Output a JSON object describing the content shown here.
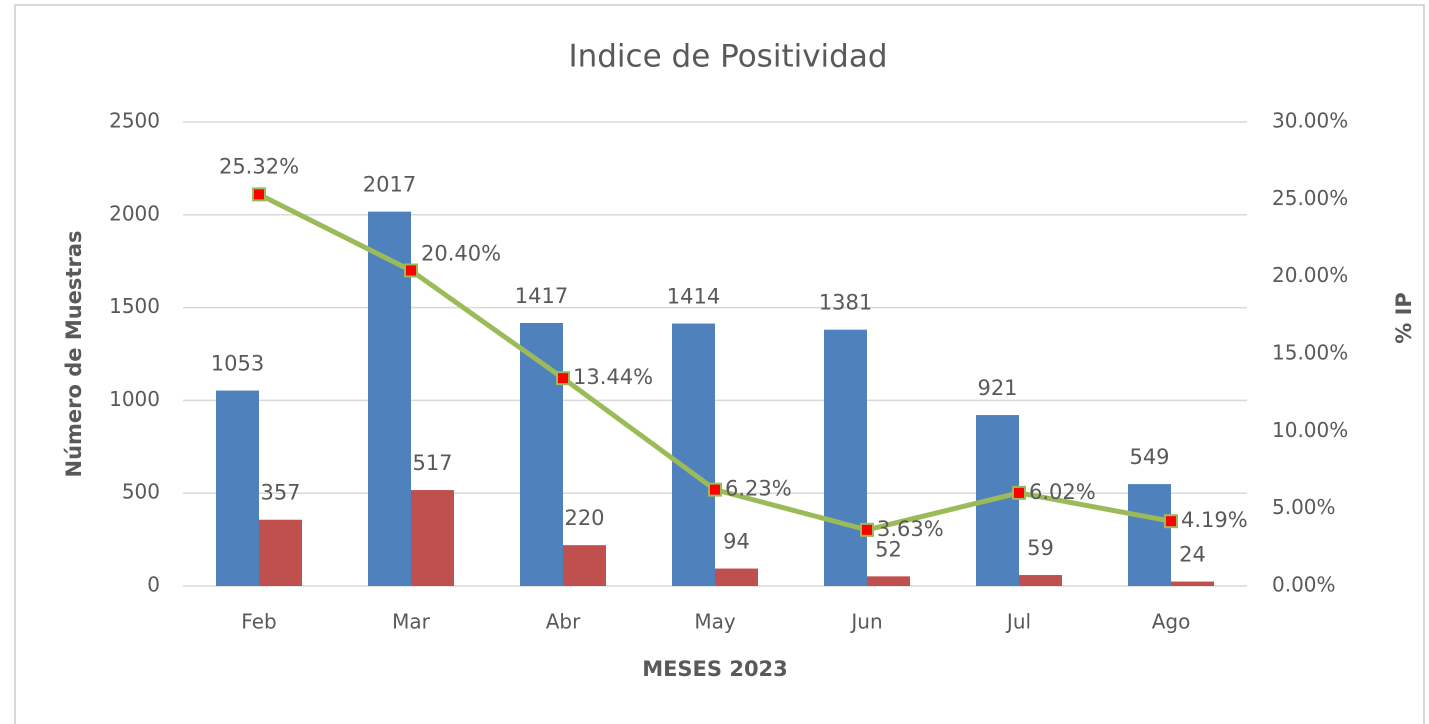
{
  "chart_data": {
    "type": "bar-line",
    "title": "Indice de Positividad",
    "x_label": "MESES 2023",
    "y_label": "Número de Muestras",
    "y2_label": "% IP",
    "categories": [
      "Feb",
      "Mar",
      "Abr",
      "May",
      "Jun",
      "Jul",
      "Ago"
    ],
    "series": [
      {
        "type": "bar",
        "color": "#4f81bd",
        "values": [
          1053,
          2017,
          1417,
          1414,
          1381,
          921,
          549
        ]
      },
      {
        "type": "bar",
        "color": "#c0504d",
        "values": [
          357,
          517,
          220,
          94,
          52,
          59,
          24
        ]
      },
      {
        "type": "line",
        "axis": "y2",
        "color": "#9bbb59",
        "marker_color": "#ff0000",
        "values": [
          25.32,
          20.4,
          13.44,
          6.23,
          3.63,
          6.02,
          4.19
        ],
        "value_labels": [
          "25.32%",
          "20.40%",
          "13.44%",
          "6.23%",
          "3.63%",
          "6.02%",
          "4.19%"
        ]
      }
    ],
    "ylim": [
      0,
      2500
    ],
    "yticks": [
      0,
      500,
      1000,
      1500,
      2000,
      2500
    ],
    "y2lim": [
      0,
      30
    ],
    "y2ticks": [
      {
        "value": 0,
        "label": "0.00%"
      },
      {
        "value": 5,
        "label": "5.00%"
      },
      {
        "value": 10,
        "label": "10.00%"
      },
      {
        "value": 15,
        "label": "15.00%"
      },
      {
        "value": 20,
        "label": "20.00%"
      },
      {
        "value": 25,
        "label": "25.00%"
      },
      {
        "value": 30,
        "label": "30.00%"
      }
    ],
    "grid": true
  }
}
